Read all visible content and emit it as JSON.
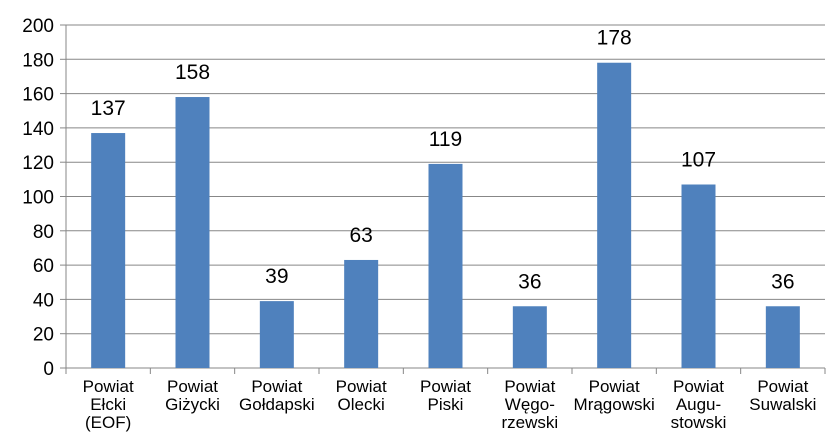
{
  "chart_data": {
    "type": "bar",
    "title": "",
    "xlabel": "",
    "ylabel": "",
    "ylim": [
      0,
      200
    ],
    "yticks": [
      0,
      20,
      40,
      60,
      80,
      100,
      120,
      140,
      160,
      180,
      200
    ],
    "grid": true,
    "legend": "none",
    "bar_color": "#4f81bd",
    "categories": [
      [
        "Powiat",
        "Ełcki",
        "(EOF)"
      ],
      [
        "Powiat",
        "Giżycki"
      ],
      [
        "Powiat",
        "Gołdapski"
      ],
      [
        "Powiat",
        "Olecki"
      ],
      [
        "Powiat",
        "Piski"
      ],
      [
        "Powiat",
        "Węgo-",
        "rzewski"
      ],
      [
        "Powiat",
        "Mrągowski"
      ],
      [
        "Powiat",
        "Augu-",
        "stowski"
      ],
      [
        "Powiat",
        "Suwalski"
      ]
    ],
    "values": [
      137,
      158,
      39,
      63,
      119,
      36,
      178,
      107,
      36
    ],
    "data_labels": [
      "137",
      "158",
      "39",
      "63",
      "119",
      "36",
      "178",
      "107",
      "36"
    ]
  }
}
